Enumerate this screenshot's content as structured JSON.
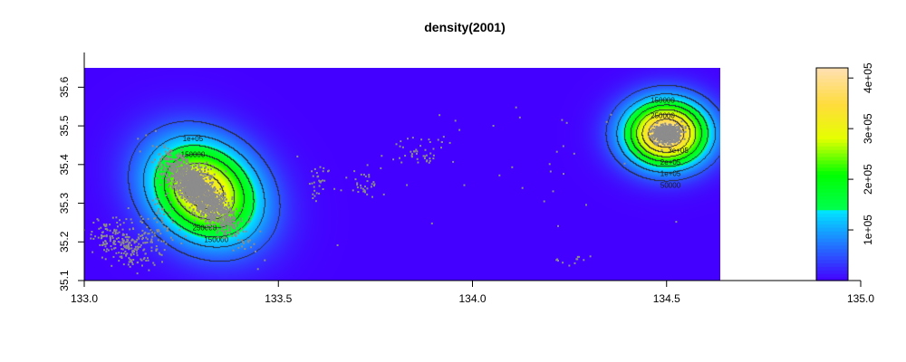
{
  "chart_data": {
    "type": "heatmap",
    "title": "density(2001)",
    "xlabel": "",
    "ylabel": "",
    "xlim": [
      133.0,
      134.65
    ],
    "ylim": [
      35.1,
      35.65
    ],
    "x_ticks": [
      "133.0",
      "133.5",
      "134.0",
      "134.5"
    ],
    "x_tick_values": [
      133.0,
      133.5,
      134.0,
      134.5
    ],
    "y_ticks": [
      "35.1",
      "35.2",
      "35.3",
      "35.4",
      "35.5",
      "35.6"
    ],
    "y_tick_values": [
      35.1,
      35.2,
      35.3,
      35.4,
      35.5,
      35.6
    ],
    "background_color": "#4400ff",
    "point_color": "#8c8c8c",
    "contour_color": "#333333",
    "density_peaks": [
      {
        "x": 133.31,
        "y": 35.33,
        "peak": 340000,
        "sx": 0.085,
        "sy": 0.085,
        "rotation_deg": -35
      },
      {
        "x": 134.5,
        "y": 35.48,
        "peak": 420000,
        "sx": 0.06,
        "sy": 0.06,
        "rotation_deg": 0
      }
    ],
    "contour_labels": [
      {
        "text": "1e+05",
        "x": 133.28,
        "y": 35.46
      },
      {
        "text": "150000",
        "x": 133.28,
        "y": 35.42
      },
      {
        "text": "250000",
        "x": 133.31,
        "y": 35.23
      },
      {
        "text": "150000",
        "x": 133.34,
        "y": 35.2
      },
      {
        "text": "150000",
        "x": 134.49,
        "y": 35.56
      },
      {
        "text": "250000",
        "x": 134.49,
        "y": 35.52
      },
      {
        "text": "3e+05",
        "x": 134.53,
        "y": 35.43
      },
      {
        "text": "2e+05",
        "x": 134.51,
        "y": 35.4
      },
      {
        "text": "1e+05",
        "x": 134.51,
        "y": 35.37
      },
      {
        "text": "50000",
        "x": 134.51,
        "y": 35.34
      }
    ],
    "point_clusters": [
      {
        "x": 133.3,
        "y": 35.32,
        "sx": 0.045,
        "sy": 0.045,
        "rho": -0.82,
        "n": 1500
      },
      {
        "x": 133.28,
        "y": 35.36,
        "sx": 0.03,
        "sy": 0.03,
        "rho": -0.6,
        "n": 500
      },
      {
        "x": 134.5,
        "y": 35.48,
        "sx": 0.018,
        "sy": 0.012,
        "rho": 0,
        "n": 650
      },
      {
        "x": 133.1,
        "y": 35.2,
        "sx": 0.04,
        "sy": 0.03,
        "rho": -0.4,
        "n": 240
      },
      {
        "x": 133.19,
        "y": 35.24,
        "sx": 0.025,
        "sy": 0.04,
        "rho": 0.2,
        "n": 70
      },
      {
        "x": 133.61,
        "y": 35.35,
        "sx": 0.015,
        "sy": 0.025,
        "rho": 0,
        "n": 30
      },
      {
        "x": 133.72,
        "y": 35.35,
        "sx": 0.02,
        "sy": 0.02,
        "rho": 0,
        "n": 30
      },
      {
        "x": 133.87,
        "y": 35.43,
        "sx": 0.04,
        "sy": 0.02,
        "rho": 0,
        "n": 40
      },
      {
        "x": 134.27,
        "y": 35.16,
        "sx": 0.03,
        "sy": 0.01,
        "rho": 0,
        "n": 12
      },
      {
        "x": 134.0,
        "y": 35.4,
        "sx": 0.25,
        "sy": 0.1,
        "rho": 0,
        "n": 45
      }
    ],
    "colorbar": {
      "min": 0,
      "max": 420000,
      "ticks": [
        "1e+05",
        "2e+05",
        "3e+05",
        "4e+05"
      ],
      "tick_values": [
        100000,
        200000,
        300000,
        400000
      ],
      "range_label_min": "133.0",
      "range_label_max": "135.0"
    }
  }
}
